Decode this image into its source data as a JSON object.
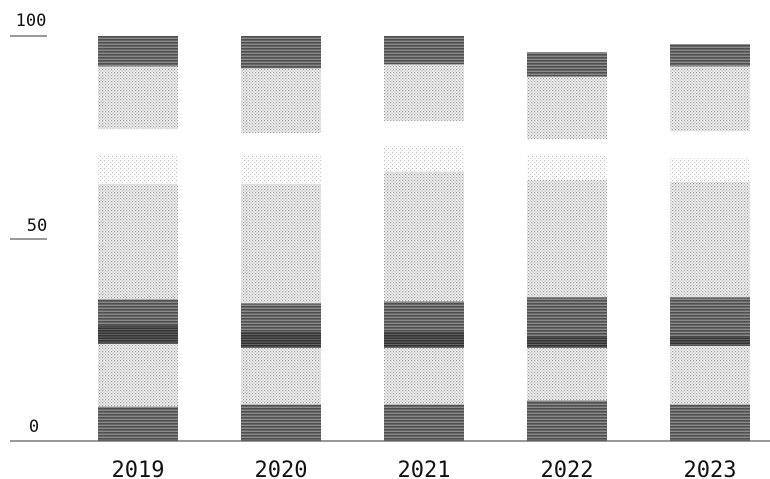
{
  "chart_data": {
    "type": "bar",
    "stacked": true,
    "categories": [
      "2019",
      "2020",
      "2021",
      "2022",
      "2023"
    ],
    "series": [
      {
        "values": [
          8.5,
          9.0,
          9.0,
          10.0,
          9.0
        ],
        "texture": "dark"
      },
      {
        "values": [
          15.5,
          14.0,
          14.0,
          13.0,
          14.5
        ],
        "texture": "light"
      },
      {
        "values": [
          4.5,
          4.0,
          4.0,
          3.0,
          2.5
        ],
        "texture": "darkest"
      },
      {
        "values": [
          6.5,
          7.0,
          7.5,
          9.5,
          9.5
        ],
        "texture": "dark"
      },
      {
        "values": [
          28.5,
          29.5,
          32.0,
          29.0,
          28.5
        ],
        "texture": "light"
      },
      {
        "values": [
          7.0,
          7.0,
          6.5,
          6.0,
          6.0
        ],
        "texture": "faint"
      },
      {
        "values": [
          6.5,
          5.5,
          6.0,
          4.0,
          6.5
        ],
        "texture": "gap"
      },
      {
        "values": [
          15.5,
          16.0,
          14.0,
          15.5,
          16.0
        ],
        "texture": "light"
      },
      {
        "values": [
          7.5,
          8.0,
          7.0,
          6.0,
          5.5
        ],
        "texture": "dark"
      }
    ],
    "y_ticks": [
      "0",
      "50",
      "100"
    ],
    "ylim": [
      0,
      100
    ],
    "grid": false,
    "legend": "none",
    "colors": {
      "dark": "#6f6f6f",
      "darkest": "#4a4a4a",
      "light": "#dcdcdc",
      "faint": "#f0f0f0",
      "axis": "#333333"
    }
  }
}
